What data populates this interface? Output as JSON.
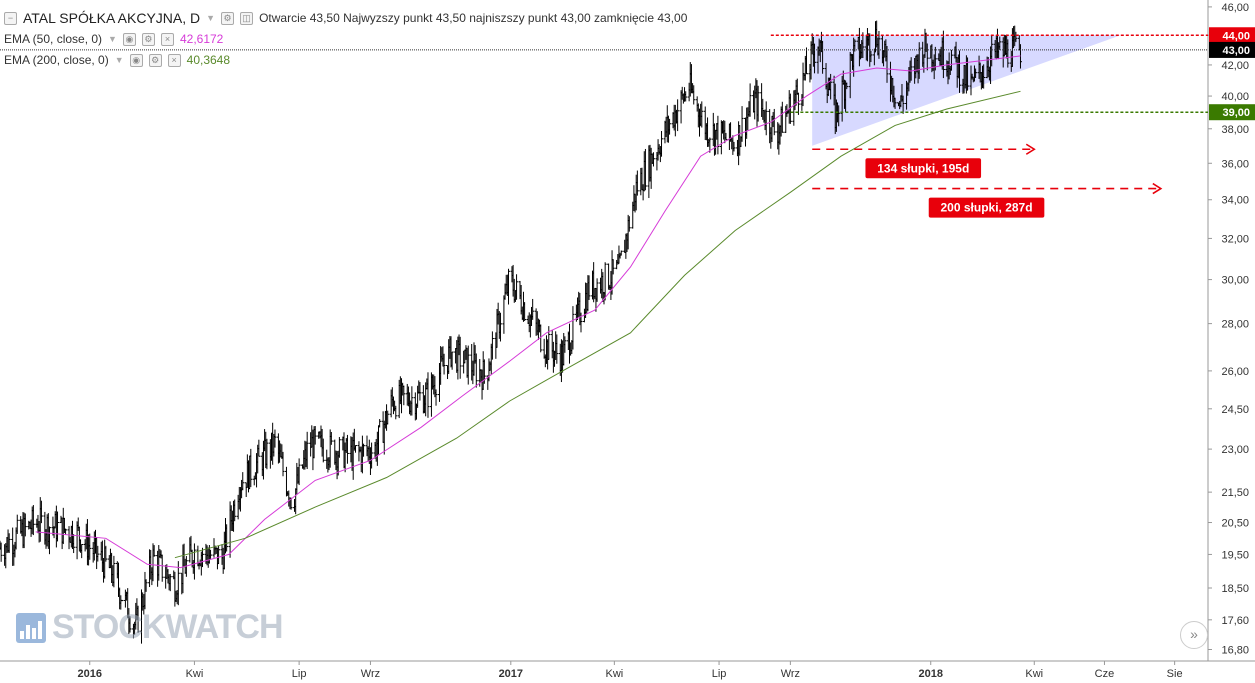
{
  "header": {
    "symbol_title": "ATAL SPÓŁKA AKCYJNA, D",
    "open_label": "Otwarcie",
    "open_value": "43,50",
    "high_label": "Najwyzszy punkt",
    "high_value": "43,50",
    "low_label": "najniszszy punkt",
    "low_value": "43,00",
    "close_label": "zamknięcie",
    "close_value": "43,00"
  },
  "indicators": [
    {
      "label": "EMA (50, close, 0)",
      "value": "42,6172",
      "color": "#d63bd8"
    },
    {
      "label": "EMA (200, close, 0)",
      "value": "40,3648",
      "color": "#5a8a2c"
    }
  ],
  "watermark": "STOCKWATCH",
  "chart_data": {
    "type": "line",
    "series_kind": "ohlc-bars",
    "y_scale": "log",
    "ylim": [
      16.5,
      46.5
    ],
    "y_ticks": [
      "16,80",
      "17,60",
      "18,50",
      "19,50",
      "20,50",
      "21,50",
      "23,00",
      "24,50",
      "26,00",
      "28,00",
      "30,00",
      "32,00",
      "34,00",
      "36,00",
      "38,00",
      "40,00",
      "42,00",
      "44,00",
      "46,00"
    ],
    "x_ticks": [
      "2016",
      "Kwi",
      "Lip",
      "Wrz",
      "2017",
      "Kwi",
      "Lip",
      "Wrz",
      "2018",
      "Kwi",
      "Cze",
      "Sie"
    ],
    "x_tick_dates": [
      "2016-01-01",
      "2016-04-01",
      "2016-07-01",
      "2016-09-01",
      "2017-01-01",
      "2017-04-01",
      "2017-07-01",
      "2017-09-01",
      "2018-01-01",
      "2018-04-01",
      "2018-06-01",
      "2018-08-01"
    ],
    "x_range": [
      "2015-10-15",
      "2018-08-30"
    ],
    "price": [
      [
        "2015-10-15",
        19.7
      ],
      [
        "2015-11-15",
        20.5
      ],
      [
        "2015-12-20",
        20.2
      ],
      [
        "2016-01-20",
        19.0
      ],
      [
        "2016-02-10",
        17.4
      ],
      [
        "2016-02-25",
        19.4
      ],
      [
        "2016-03-15",
        18.6
      ],
      [
        "2016-04-01",
        19.6
      ],
      [
        "2016-04-25",
        19.4
      ],
      [
        "2016-05-10",
        21.8
      ],
      [
        "2016-06-10",
        23.2
      ],
      [
        "2016-06-25",
        21.2
      ],
      [
        "2016-07-10",
        23.2
      ],
      [
        "2016-08-15",
        22.8
      ],
      [
        "2016-09-05",
        23.0
      ],
      [
        "2016-09-20",
        24.8
      ],
      [
        "2016-10-20",
        25.0
      ],
      [
        "2016-11-10",
        26.8
      ],
      [
        "2016-12-10",
        25.8
      ],
      [
        "2016-12-31",
        30.0
      ],
      [
        "2017-02-01",
        27.0
      ],
      [
        "2017-02-15",
        26.6
      ],
      [
        "2017-03-10",
        29.6
      ],
      [
        "2017-04-05",
        30.4
      ],
      [
        "2017-04-20",
        34.6
      ],
      [
        "2017-05-15",
        37.8
      ],
      [
        "2017-06-05",
        40.6
      ],
      [
        "2017-06-20",
        38.0
      ],
      [
        "2017-07-15",
        37.2
      ],
      [
        "2017-08-01",
        39.8
      ],
      [
        "2017-08-20",
        37.8
      ],
      [
        "2017-09-10",
        40.6
      ],
      [
        "2017-09-25",
        43.6
      ],
      [
        "2017-10-10",
        38.8
      ],
      [
        "2017-10-25",
        42.6
      ],
      [
        "2017-11-15",
        44.0
      ],
      [
        "2017-12-05",
        39.4
      ],
      [
        "2017-12-25",
        43.2
      ],
      [
        "2018-01-20",
        42.4
      ],
      [
        "2018-02-05",
        40.6
      ],
      [
        "2018-02-25",
        42.8
      ],
      [
        "2018-03-20",
        43.0
      ]
    ],
    "series": [
      {
        "name": "EMA (50, close, 0)",
        "color": "#d63bd8",
        "values": [
          [
            "2015-11-15",
            20.2
          ],
          [
            "2016-01-15",
            20.0
          ],
          [
            "2016-02-20",
            19.2
          ],
          [
            "2016-03-20",
            19.1
          ],
          [
            "2016-05-01",
            19.5
          ],
          [
            "2016-06-01",
            20.6
          ],
          [
            "2016-07-15",
            21.9
          ],
          [
            "2016-09-01",
            22.6
          ],
          [
            "2016-10-15",
            23.8
          ],
          [
            "2016-11-20",
            25.0
          ],
          [
            "2016-12-31",
            26.4
          ],
          [
            "2017-02-01",
            27.6
          ],
          [
            "2017-03-15",
            28.6
          ],
          [
            "2017-04-15",
            30.6
          ],
          [
            "2017-05-15",
            33.4
          ],
          [
            "2017-06-15",
            36.4
          ],
          [
            "2017-07-15",
            37.6
          ],
          [
            "2017-08-15",
            38.4
          ],
          [
            "2017-09-15",
            40.0
          ],
          [
            "2017-10-15",
            41.4
          ],
          [
            "2017-11-15",
            41.8
          ],
          [
            "2017-12-15",
            41.6
          ],
          [
            "2018-01-15",
            42.0
          ],
          [
            "2018-03-20",
            42.6
          ]
        ]
      },
      {
        "name": "EMA (200, close, 0)",
        "color": "#5a8a2c",
        "values": [
          [
            "2016-03-15",
            19.4
          ],
          [
            "2016-05-15",
            20.0
          ],
          [
            "2016-07-15",
            21.0
          ],
          [
            "2016-09-15",
            22.0
          ],
          [
            "2016-11-15",
            23.4
          ],
          [
            "2016-12-31",
            24.8
          ],
          [
            "2017-02-15",
            26.0
          ],
          [
            "2017-04-15",
            27.6
          ],
          [
            "2017-06-01",
            30.2
          ],
          [
            "2017-07-15",
            32.4
          ],
          [
            "2017-09-01",
            34.4
          ],
          [
            "2017-10-15",
            36.4
          ],
          [
            "2017-12-01",
            38.2
          ],
          [
            "2018-01-15",
            39.2
          ],
          [
            "2018-03-20",
            40.3
          ]
        ]
      }
    ],
    "price_labels": [
      {
        "text": "44,00",
        "color": "#e8000b"
      },
      {
        "text": "43,00",
        "color": "#000000"
      },
      {
        "text": "39,00",
        "color": "#3a7a00"
      }
    ],
    "annotations": {
      "resistance": {
        "value": 44.0,
        "color": "#e8000b",
        "from": "2017-08-15"
      },
      "support": {
        "value": 39.0,
        "color": "#3a7a00",
        "from": "2017-09-01"
      },
      "triangle": {
        "fill": "#c9ccff",
        "points": [
          [
            "2017-09-20",
            44.0
          ],
          [
            "2017-09-20",
            37.0
          ],
          [
            "2018-06-15",
            44.0
          ]
        ]
      },
      "arrow1": {
        "value": 36.8,
        "from": "2017-09-20",
        "to": "2018-04-01",
        "label": "134 słupki, 195d"
      },
      "arrow2": {
        "value": 34.6,
        "from": "2017-09-20",
        "to": "2018-07-20",
        "label": "200 słupki, 287d"
      }
    }
  }
}
